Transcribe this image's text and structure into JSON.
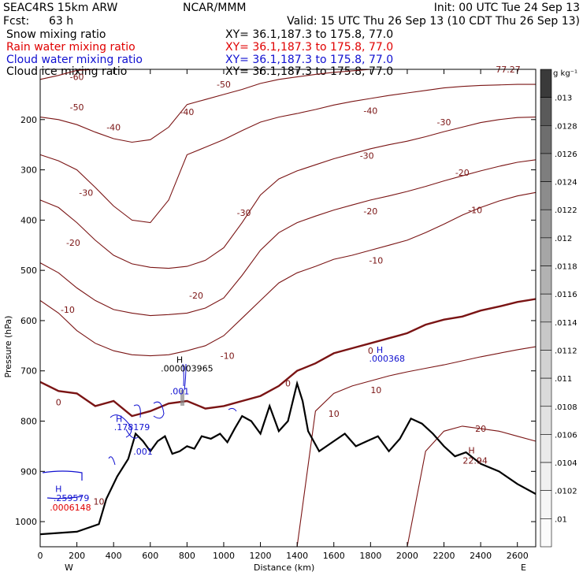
{
  "header": {
    "model": "SEAC4RS 15km ARW",
    "center": "NCAR/MMM",
    "init": "Init: 00 UTC Tue 24 Sep 13",
    "fcst_label": "Fcst:",
    "fcst_value": "63 h",
    "valid": "Valid: 15 UTC Thu 26 Sep 13 (10 CDT Thu 26 Sep 13)"
  },
  "fields": [
    {
      "name": "Snow mixing ratio",
      "xy": "XY=  36.1,187.3 to 175.8, 77.0",
      "color": "#000000"
    },
    {
      "name": "Rain water mixing ratio",
      "xy": "XY=  36.1,187.3 to 175.8, 77.0",
      "color": "#e00000"
    },
    {
      "name": "Cloud water mixing ratio",
      "xy": "XY=  36.1,187.3 to 175.8, 77.0",
      "color": "#1010d0"
    },
    {
      "name": "Cloud ice mixing ratio",
      "xy": "XY=  36.1,187.3 to 175.8, 77.0",
      "color": "#000000"
    }
  ],
  "chart_data": {
    "type": "line",
    "title": "",
    "xlabel": "Distance (km)",
    "ylabel": "Pressure (hPa)",
    "xlim": [
      0,
      2700
    ],
    "ylim": [
      1050,
      100
    ],
    "x_ticks": [
      0,
      200,
      400,
      600,
      800,
      1000,
      1200,
      1400,
      1600,
      1800,
      2000,
      2200,
      2400,
      2600
    ],
    "y_ticks": [
      200,
      300,
      400,
      500,
      600,
      700,
      800,
      900,
      1000
    ],
    "x_end_labels": {
      "left": "W",
      "right": "E"
    },
    "colorbar": {
      "unit": "g kg⁻¹",
      "labels": [
        ".013",
        ".0128",
        ".0126",
        ".0124",
        ".0122",
        ".012",
        ".0118",
        ".0116",
        ".0114",
        ".0112",
        ".011",
        ".0108",
        ".0106",
        ".0104",
        ".0102",
        ".01"
      ],
      "palette": [
        "#3a3a3a",
        "#5a5a5a",
        "#6e6e6e",
        "#7e7e7e",
        "#8c8c8c",
        "#9a9a9a",
        "#a6a6a6",
        "#b2b2b2",
        "#bebebe",
        "#c8c8c8",
        "#d2d2d2",
        "#dadada",
        "#e2e2e2",
        "#eaeaea",
        "#f0f0f0",
        "#f6f6f6",
        "#fbfbfb"
      ]
    },
    "temperature_contour_color": "#7a1414",
    "terrain": {
      "color": "#000000",
      "x": [
        0,
        200,
        320,
        360,
        420,
        480,
        520,
        560,
        600,
        640,
        680,
        720,
        760,
        800,
        840,
        880,
        930,
        980,
        1020,
        1060,
        1100,
        1150,
        1200,
        1250,
        1300,
        1350,
        1400,
        1430,
        1460,
        1520,
        1600,
        1660,
        1720,
        1780,
        1840,
        1900,
        1960,
        2020,
        2080,
        2140,
        2200,
        2260,
        2320,
        2400,
        2500,
        2600,
        2700
      ],
      "y": [
        1025,
        1020,
        1005,
        955,
        910,
        875,
        825,
        840,
        860,
        840,
        830,
        865,
        860,
        850,
        855,
        830,
        835,
        825,
        842,
        815,
        790,
        800,
        825,
        770,
        820,
        800,
        725,
        760,
        820,
        860,
        840,
        825,
        850,
        840,
        830,
        860,
        835,
        795,
        805,
        825,
        850,
        870,
        862,
        885,
        900,
        925,
        945
      ]
    },
    "freezing_level": {
      "label": "0",
      "x": [
        0,
        100,
        200,
        300,
        400,
        500,
        600,
        700,
        800,
        900,
        1000,
        1100,
        1200,
        1300,
        1400,
        1500,
        1600,
        1700,
        1800,
        1900,
        2000,
        2100,
        2200,
        2300,
        2400,
        2500,
        2600,
        2700
      ],
      "y": [
        722,
        740,
        745,
        770,
        760,
        790,
        780,
        765,
        760,
        775,
        770,
        760,
        750,
        730,
        700,
        685,
        665,
        655,
        645,
        635,
        625,
        608,
        598,
        592,
        580,
        572,
        563,
        557
      ]
    },
    "isotherms": [
      {
        "label": "-10",
        "y": [
          560,
          585,
          620,
          645,
          660,
          668,
          670,
          668,
          660,
          650,
          630,
          595,
          560,
          525,
          505,
          492,
          478,
          470,
          460,
          450,
          440,
          425,
          408,
          390,
          375,
          362,
          352,
          345
        ]
      },
      {
        "label": "-20",
        "y": [
          485,
          505,
          535,
          560,
          578,
          585,
          590,
          588,
          585,
          575,
          555,
          510,
          460,
          425,
          405,
          392,
          380,
          370,
          360,
          352,
          343,
          333,
          322,
          312,
          302,
          293,
          285,
          280
        ]
      },
      {
        "label": "-30",
        "y": [
          360,
          375,
          405,
          440,
          470,
          487,
          494,
          496,
          492,
          480,
          455,
          405,
          350,
          318,
          302,
          290,
          278,
          268,
          258,
          250,
          243,
          234,
          224,
          215,
          206,
          200,
          196,
          195
        ]
      },
      {
        "label": "-40",
        "y": [
          270,
          282,
          300,
          335,
          372,
          400,
          405,
          360,
          270,
          255,
          240,
          222,
          205,
          195,
          188,
          180,
          171,
          164,
          158,
          152,
          147,
          142,
          137,
          134,
          132,
          131,
          130,
          130
        ]
      },
      {
        "label": "-50",
        "y": [
          195,
          200,
          210,
          225,
          238,
          245,
          240,
          215,
          170,
          160,
          150,
          140,
          128,
          120,
          115,
          110,
          106,
          103,
          100,
          98,
          97,
          96,
          96,
          96,
          96,
          96,
          96,
          96
        ]
      },
      {
        "label": "-60",
        "y": [
          120,
          112,
          102,
          96,
          96,
          96,
          96,
          96,
          96,
          96,
          96,
          96,
          96,
          96,
          96,
          96,
          96,
          96,
          96,
          96,
          96,
          96,
          96,
          96,
          96,
          96,
          96,
          96
        ]
      },
      {
        "label": "10",
        "y": [
          1050,
          1050,
          1050,
          1050,
          1050,
          1050,
          1050,
          1050,
          1050,
          1050,
          1050,
          1050,
          1050,
          1050,
          1050,
          780,
          745,
          730,
          720,
          710,
          702,
          695,
          688,
          680,
          672,
          665,
          658,
          652
        ]
      },
      {
        "label": "20",
        "y": [
          1050,
          1050,
          1050,
          1050,
          1050,
          1050,
          1050,
          1050,
          1050,
          1050,
          1050,
          1050,
          1050,
          1050,
          1050,
          1050,
          1050,
          1050,
          1050,
          1050,
          1050,
          860,
          820,
          810,
          815,
          820,
          830,
          840
        ]
      }
    ],
    "contour_labels": [
      {
        "text": "-60",
        "x": 200,
        "y": 115
      },
      {
        "text": "-50",
        "x": 1000,
        "y": 130
      },
      {
        "text": "-50",
        "x": 200,
        "y": 175
      },
      {
        "text": "-40",
        "x": 400,
        "y": 215
      },
      {
        "text": "-40",
        "x": 800,
        "y": 185
      },
      {
        "text": "-40",
        "x": 1800,
        "y": 182
      },
      {
        "text": "-30",
        "x": 250,
        "y": 345
      },
      {
        "text": "-30",
        "x": 1110,
        "y": 385
      },
      {
        "text": "-30",
        "x": 1780,
        "y": 272
      },
      {
        "text": "-30",
        "x": 2200,
        "y": 205
      },
      {
        "text": "-20",
        "x": 180,
        "y": 445
      },
      {
        "text": "-20",
        "x": 850,
        "y": 550
      },
      {
        "text": "-20",
        "x": 1800,
        "y": 382
      },
      {
        "text": "-20",
        "x": 2300,
        "y": 305
      },
      {
        "text": "-10",
        "x": 150,
        "y": 578
      },
      {
        "text": "-10",
        "x": 1020,
        "y": 670
      },
      {
        "text": "-10",
        "x": 1830,
        "y": 480
      },
      {
        "text": "-10",
        "x": 2370,
        "y": 380
      },
      {
        "text": "0",
        "x": 100,
        "y": 762
      },
      {
        "text": "0",
        "x": 1350,
        "y": 725
      },
      {
        "text": "0",
        "x": 1800,
        "y": 660
      },
      {
        "text": "10",
        "x": 320,
        "y": 960
      },
      {
        "text": "10",
        "x": 1600,
        "y": 785
      },
      {
        "text": "10",
        "x": 1830,
        "y": 738
      },
      {
        "text": "20",
        "x": 2400,
        "y": 815
      }
    ],
    "annotations": [
      {
        "text": "77.27",
        "x": 2550,
        "y": 100,
        "color": "#7a1414"
      },
      {
        "text": "H",
        "x": 2350,
        "y": 858,
        "color": "#7a1414"
      },
      {
        "text": "22.94",
        "x": 2370,
        "y": 878,
        "color": "#7a1414"
      },
      {
        "text": "H",
        "x": 760,
        "y": 678,
        "color": "#000000"
      },
      {
        "text": ".000003965",
        "x": 800,
        "y": 695,
        "color": "#000000"
      },
      {
        "text": "H",
        "x": 1850,
        "y": 658,
        "color": "#1010d0"
      },
      {
        "text": ".000368",
        "x": 1890,
        "y": 675,
        "color": "#1010d0"
      },
      {
        "text": ".001",
        "x": 760,
        "y": 740,
        "color": "#1010d0"
      },
      {
        "text": "H",
        "x": 430,
        "y": 795,
        "color": "#1010d0"
      },
      {
        "text": ".178179",
        "x": 500,
        "y": 812,
        "color": "#1010d0"
      },
      {
        "text": ".001",
        "x": 560,
        "y": 860,
        "color": "#1010d0"
      },
      {
        "text": "H",
        "x": 100,
        "y": 935,
        "color": "#1010d0"
      },
      {
        "text": ".259579",
        "x": 170,
        "y": 953,
        "color": "#1010d0"
      },
      {
        "text": ".0006148",
        "x": 165,
        "y": 972,
        "color": "#e00000"
      }
    ]
  }
}
